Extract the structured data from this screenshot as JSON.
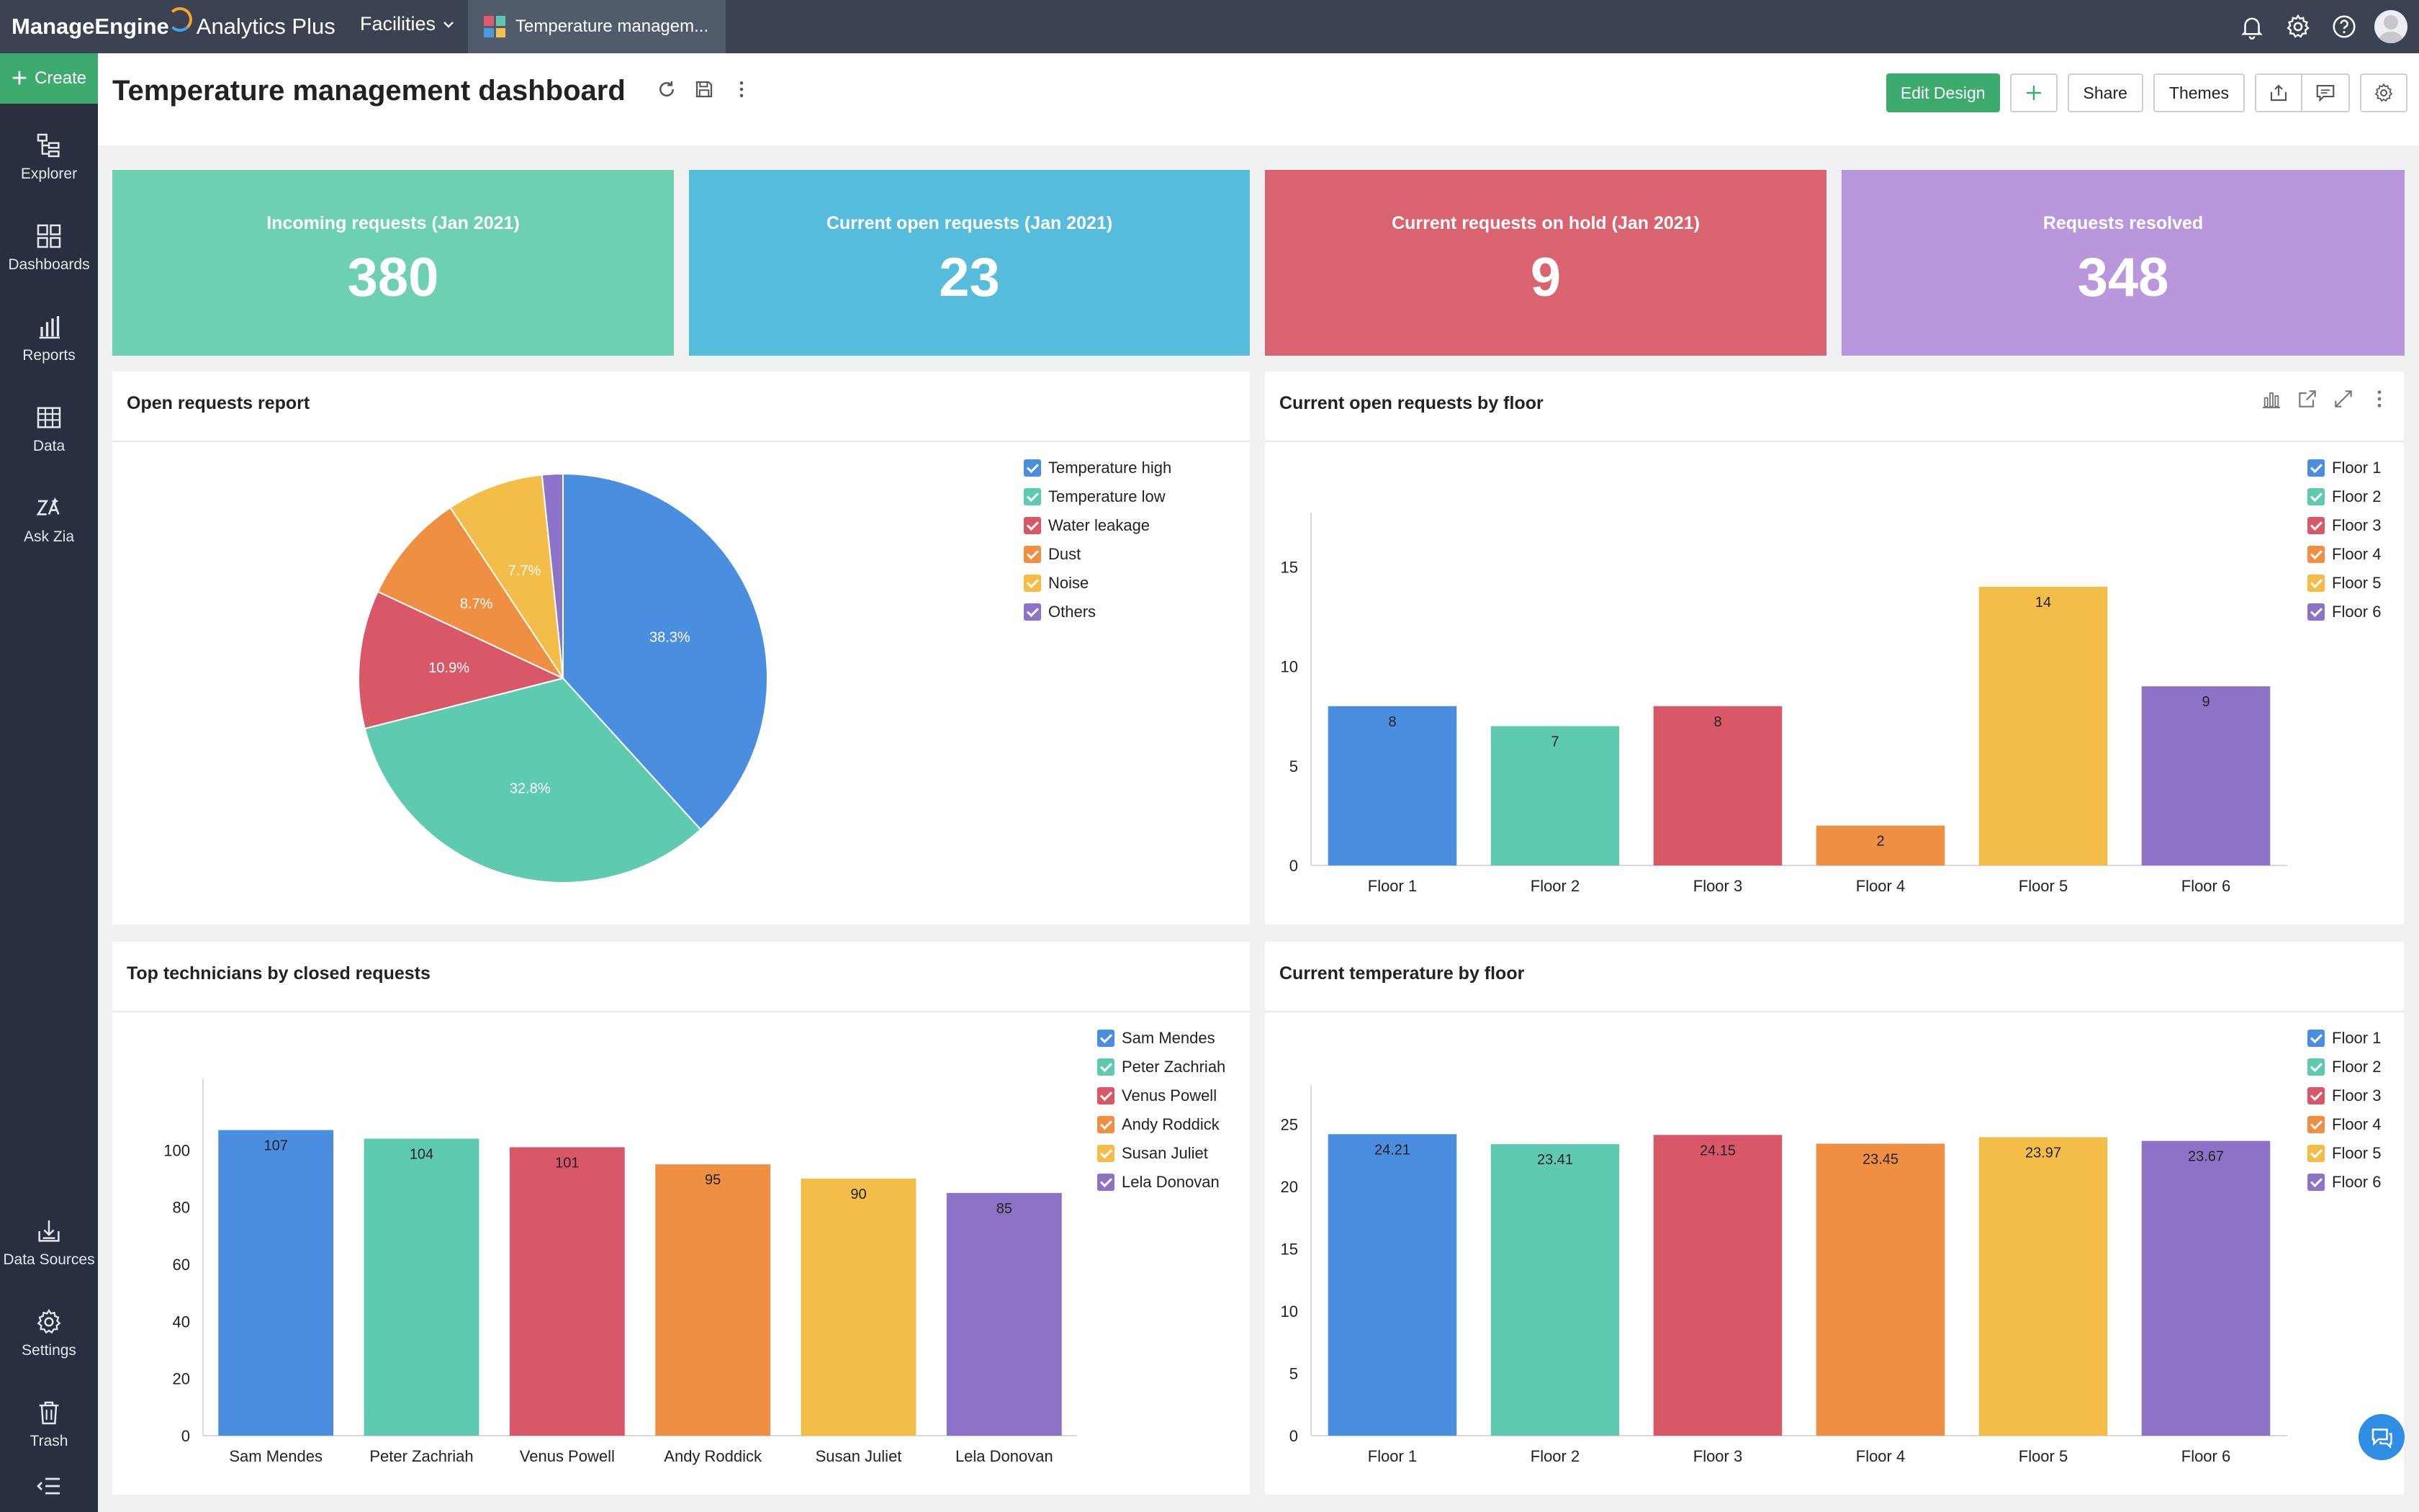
{
  "app": {
    "brand_bold": "ManageEngine",
    "brand_rest": "Analytics Plus",
    "workspace": "Facilities",
    "tab_label": "Temperature managem..."
  },
  "sidebar": {
    "create_label": "Create",
    "items": [
      {
        "label": "Explorer",
        "icon": "explorer-icon"
      },
      {
        "label": "Dashboards",
        "icon": "dashboards-icon"
      },
      {
        "label": "Reports",
        "icon": "reports-icon"
      },
      {
        "label": "Data",
        "icon": "data-table-icon"
      },
      {
        "label": "Ask Zia",
        "icon": "ask-zia-icon"
      }
    ],
    "bottom_items": [
      {
        "label": "Data Sources",
        "icon": "data-sources-icon"
      },
      {
        "label": "Settings",
        "icon": "settings-icon"
      },
      {
        "label": "Trash",
        "icon": "trash-icon"
      }
    ]
  },
  "header": {
    "title": "Temperature management dashboard",
    "edit_design": "Edit Design",
    "share": "Share",
    "themes": "Themes"
  },
  "kpis": [
    {
      "label": "Incoming requests (Jan 2021)",
      "value": "380",
      "color": "#6dd0b3"
    },
    {
      "label": "Current open requests (Jan 2021)",
      "value": "23",
      "color": "#56bcdc"
    },
    {
      "label": "Current requests on hold (Jan 2021)",
      "value": "9",
      "color": "#d9636f"
    },
    {
      "label": "Requests resolved",
      "value": "348",
      "color": "#b997dd"
    }
  ],
  "panels": {
    "open_requests": {
      "title": "Open requests report"
    },
    "by_floor": {
      "title": "Current open requests by floor"
    },
    "technicians": {
      "title": "Top technicians by closed requests"
    },
    "temperature": {
      "title": "Current temperature by floor"
    }
  },
  "colors": [
    "#4a8ee0",
    "#5ecbb1",
    "#d95868",
    "#ef8f42",
    "#f3bd48",
    "#8c73c8"
  ],
  "chart_data": [
    {
      "type": "pie",
      "title": "Open requests report",
      "categories": [
        "Temperature high",
        "Temperature low",
        "Water leakage",
        "Dust",
        "Noise",
        "Others"
      ],
      "values": [
        140,
        120,
        40,
        32,
        28,
        6
      ],
      "labels": [
        "38.3%",
        "32.8%",
        "10.9%",
        "8.7%",
        "7.7%",
        ""
      ],
      "legend": "top-right"
    },
    {
      "type": "bar",
      "title": "Current open requests by floor",
      "categories": [
        "Floor 1",
        "Floor 2",
        "Floor 3",
        "Floor 4",
        "Floor 5",
        "Floor 6"
      ],
      "values": [
        8,
        7,
        8,
        2,
        14,
        9
      ],
      "value_labels": [
        "8",
        "7",
        "8",
        "2",
        "14",
        "9"
      ],
      "yticks": [
        "0",
        "5",
        "10",
        "15"
      ],
      "ylim": [
        0,
        17
      ],
      "legend": "top-right"
    },
    {
      "type": "bar",
      "title": "Top technicians by closed requests",
      "categories": [
        "Sam Mendes",
        "Peter Zachriah",
        "Venus Powell",
        "Andy Roddick",
        "Susan Juliet",
        "Lela Donovan"
      ],
      "values": [
        107,
        104,
        101,
        95,
        90,
        85
      ],
      "value_labels": [
        "107",
        "104",
        "101",
        "95",
        "90",
        "85"
      ],
      "yticks": [
        "0",
        "20",
        "40",
        "60",
        "80",
        "100"
      ],
      "ylim": [
        0,
        120
      ],
      "legend": "top-right"
    },
    {
      "type": "bar",
      "title": "Current temperature by floor",
      "categories": [
        "Floor 1",
        "Floor 2",
        "Floor 3",
        "Floor 4",
        "Floor 5",
        "Floor 6"
      ],
      "values": [
        24.21,
        23.41,
        24.15,
        23.45,
        23.97,
        23.67
      ],
      "value_labels": [
        "24.21",
        "23.41",
        "24.15",
        "23.45",
        "23.97",
        "23.67"
      ],
      "yticks": [
        "0",
        "5",
        "10",
        "15",
        "20",
        "25"
      ],
      "ylim": [
        0,
        27
      ],
      "legend": "top-right"
    }
  ]
}
